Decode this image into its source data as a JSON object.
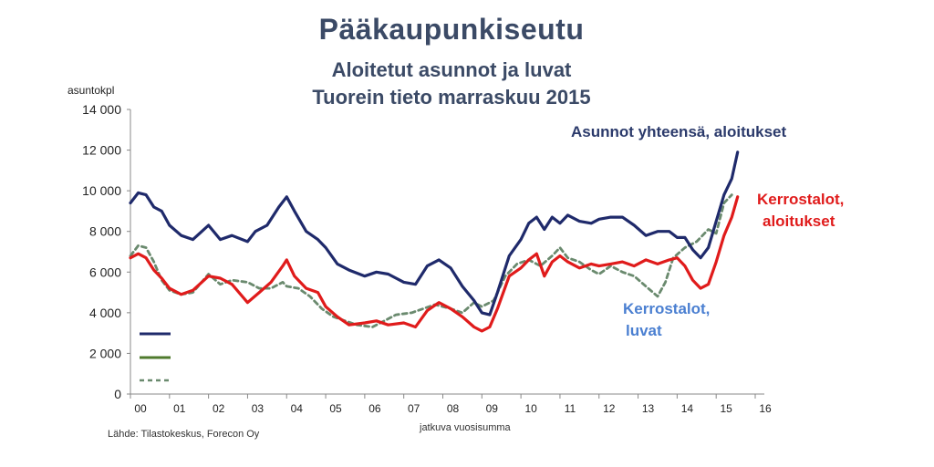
{
  "title": "Pääkaupunkiseutu",
  "subtitle1": "Aloitetut asunnot ja luvat",
  "subtitle2": "Tuorein tieto marraskuu 2015",
  "ylabel": "asuntokpl",
  "source": "Lähde: Tilastokeskus, Forecon Oy",
  "xnote": "jatkuva vuosisumma",
  "annotations": {
    "total_starts": "Asunnot yhteensä, aloitukset",
    "apartment_starts_line1": "Kerrostalot,",
    "apartment_starts_line2": "aloitukset",
    "apartment_permits_line1": "Kerrostalot,",
    "apartment_permits_line2": "luvat"
  },
  "colors": {
    "total": "#1f2a6b",
    "apartment_starts": "#e01b1b",
    "permits": "#6a8a6e",
    "title": "#3b4a66",
    "permits_label": "#4a7fd1"
  },
  "chart_data": {
    "type": "line",
    "ylim": [
      0,
      14000
    ],
    "xlim": [
      2000,
      2016
    ],
    "yticks": [
      0,
      2000,
      4000,
      6000,
      8000,
      10000,
      12000,
      14000
    ],
    "ytick_labels": [
      "0",
      "2 000",
      "4 000",
      "6 000",
      "8 000",
      "10 000",
      "12 000",
      "14 000"
    ],
    "xtick_labels": [
      "00",
      "01",
      "02",
      "03",
      "04",
      "05",
      "06",
      "07",
      "08",
      "09",
      "10",
      "11",
      "12",
      "13",
      "14",
      "15",
      "16"
    ],
    "series": [
      {
        "key": "total",
        "name": "Asunnot yhteensä, aloitukset",
        "style": "solid",
        "points": [
          [
            2000,
            9400
          ],
          [
            2000.2,
            9900
          ],
          [
            2000.4,
            9800
          ],
          [
            2000.6,
            9200
          ],
          [
            2000.8,
            9000
          ],
          [
            2001,
            8300
          ],
          [
            2001.3,
            7800
          ],
          [
            2001.6,
            7600
          ],
          [
            2002,
            8300
          ],
          [
            2002.3,
            7600
          ],
          [
            2002.6,
            7800
          ],
          [
            2003,
            7500
          ],
          [
            2003.2,
            8000
          ],
          [
            2003.5,
            8300
          ],
          [
            2003.8,
            9200
          ],
          [
            2004,
            9700
          ],
          [
            2004.2,
            9000
          ],
          [
            2004.5,
            8000
          ],
          [
            2004.8,
            7600
          ],
          [
            2005,
            7200
          ],
          [
            2005.3,
            6400
          ],
          [
            2005.6,
            6100
          ],
          [
            2006,
            5800
          ],
          [
            2006.3,
            6000
          ],
          [
            2006.6,
            5900
          ],
          [
            2007,
            5500
          ],
          [
            2007.3,
            5400
          ],
          [
            2007.6,
            6300
          ],
          [
            2007.9,
            6600
          ],
          [
            2008.2,
            6200
          ],
          [
            2008.5,
            5300
          ],
          [
            2008.8,
            4600
          ],
          [
            2009,
            4000
          ],
          [
            2009.2,
            3900
          ],
          [
            2009.4,
            5000
          ],
          [
            2009.7,
            6800
          ],
          [
            2010,
            7600
          ],
          [
            2010.2,
            8400
          ],
          [
            2010.4,
            8700
          ],
          [
            2010.6,
            8100
          ],
          [
            2010.8,
            8700
          ],
          [
            2011,
            8400
          ],
          [
            2011.2,
            8800
          ],
          [
            2011.5,
            8500
          ],
          [
            2011.8,
            8400
          ],
          [
            2012,
            8600
          ],
          [
            2012.3,
            8700
          ],
          [
            2012.6,
            8700
          ],
          [
            2012.9,
            8300
          ],
          [
            2013.2,
            7800
          ],
          [
            2013.5,
            8000
          ],
          [
            2013.8,
            8000
          ],
          [
            2014,
            7700
          ],
          [
            2014.2,
            7700
          ],
          [
            2014.4,
            7100
          ],
          [
            2014.6,
            6700
          ],
          [
            2014.8,
            7200
          ],
          [
            2015,
            8500
          ],
          [
            2015.2,
            9800
          ],
          [
            2015.4,
            10600
          ],
          [
            2015.55,
            11900
          ]
        ]
      },
      {
        "key": "apartment_starts",
        "name": "Kerrostalot, aloitukset",
        "style": "solid",
        "points": [
          [
            2000,
            6700
          ],
          [
            2000.2,
            6900
          ],
          [
            2000.4,
            6700
          ],
          [
            2000.6,
            6100
          ],
          [
            2000.8,
            5700
          ],
          [
            2001,
            5200
          ],
          [
            2001.3,
            4900
          ],
          [
            2001.6,
            5100
          ],
          [
            2002,
            5800
          ],
          [
            2002.3,
            5700
          ],
          [
            2002.6,
            5400
          ],
          [
            2003,
            4500
          ],
          [
            2003.3,
            5000
          ],
          [
            2003.6,
            5500
          ],
          [
            2003.9,
            6300
          ],
          [
            2004,
            6600
          ],
          [
            2004.2,
            5800
          ],
          [
            2004.5,
            5200
          ],
          [
            2004.8,
            5000
          ],
          [
            2005,
            4300
          ],
          [
            2005.3,
            3800
          ],
          [
            2005.6,
            3400
          ],
          [
            2006,
            3500
          ],
          [
            2006.3,
            3600
          ],
          [
            2006.6,
            3400
          ],
          [
            2007,
            3500
          ],
          [
            2007.3,
            3300
          ],
          [
            2007.6,
            4100
          ],
          [
            2007.9,
            4500
          ],
          [
            2008.2,
            4200
          ],
          [
            2008.5,
            3800
          ],
          [
            2008.8,
            3300
          ],
          [
            2009,
            3100
          ],
          [
            2009.2,
            3300
          ],
          [
            2009.4,
            4200
          ],
          [
            2009.7,
            5800
          ],
          [
            2010,
            6200
          ],
          [
            2010.2,
            6600
          ],
          [
            2010.4,
            6900
          ],
          [
            2010.6,
            5800
          ],
          [
            2010.8,
            6500
          ],
          [
            2011,
            6800
          ],
          [
            2011.2,
            6500
          ],
          [
            2011.5,
            6200
          ],
          [
            2011.8,
            6400
          ],
          [
            2012,
            6300
          ],
          [
            2012.3,
            6400
          ],
          [
            2012.6,
            6500
          ],
          [
            2012.9,
            6300
          ],
          [
            2013.2,
            6600
          ],
          [
            2013.5,
            6400
          ],
          [
            2013.8,
            6600
          ],
          [
            2014,
            6700
          ],
          [
            2014.2,
            6300
          ],
          [
            2014.4,
            5600
          ],
          [
            2014.6,
            5200
          ],
          [
            2014.8,
            5400
          ],
          [
            2015,
            6500
          ],
          [
            2015.2,
            7800
          ],
          [
            2015.4,
            8700
          ],
          [
            2015.55,
            9700
          ]
        ]
      },
      {
        "key": "permits",
        "name": "Kerrostalot, luvat",
        "style": "dashed",
        "points": [
          [
            2000,
            6800
          ],
          [
            2000.2,
            7300
          ],
          [
            2000.4,
            7200
          ],
          [
            2000.6,
            6500
          ],
          [
            2000.8,
            5600
          ],
          [
            2001,
            5100
          ],
          [
            2001.3,
            4900
          ],
          [
            2001.6,
            5000
          ],
          [
            2002,
            5900
          ],
          [
            2002.3,
            5400
          ],
          [
            2002.6,
            5600
          ],
          [
            2003,
            5500
          ],
          [
            2003.3,
            5200
          ],
          [
            2003.6,
            5200
          ],
          [
            2003.9,
            5500
          ],
          [
            2004,
            5300
          ],
          [
            2004.3,
            5200
          ],
          [
            2004.6,
            4800
          ],
          [
            2004.9,
            4200
          ],
          [
            2005.2,
            3800
          ],
          [
            2005.5,
            3600
          ],
          [
            2005.8,
            3400
          ],
          [
            2006.2,
            3300
          ],
          [
            2006.5,
            3600
          ],
          [
            2006.8,
            3900
          ],
          [
            2007.2,
            4000
          ],
          [
            2007.5,
            4200
          ],
          [
            2007.8,
            4400
          ],
          [
            2008.2,
            4200
          ],
          [
            2008.5,
            4000
          ],
          [
            2008.8,
            4500
          ],
          [
            2009,
            4300
          ],
          [
            2009.3,
            4600
          ],
          [
            2009.6,
            5800
          ],
          [
            2009.9,
            6400
          ],
          [
            2010.2,
            6600
          ],
          [
            2010.5,
            6300
          ],
          [
            2010.8,
            6800
          ],
          [
            2011,
            7200
          ],
          [
            2011.2,
            6700
          ],
          [
            2011.5,
            6500
          ],
          [
            2011.8,
            6100
          ],
          [
            2012,
            5900
          ],
          [
            2012.3,
            6300
          ],
          [
            2012.6,
            6000
          ],
          [
            2012.9,
            5800
          ],
          [
            2013.2,
            5300
          ],
          [
            2013.5,
            4800
          ],
          [
            2013.7,
            5500
          ],
          [
            2013.9,
            6700
          ],
          [
            2014.2,
            7200
          ],
          [
            2014.5,
            7500
          ],
          [
            2014.8,
            8100
          ],
          [
            2015,
            7900
          ],
          [
            2015.2,
            9400
          ],
          [
            2015.4,
            9800
          ]
        ]
      }
    ],
    "legend_swatches": [
      "total",
      "permits_solid",
      "permits"
    ]
  }
}
